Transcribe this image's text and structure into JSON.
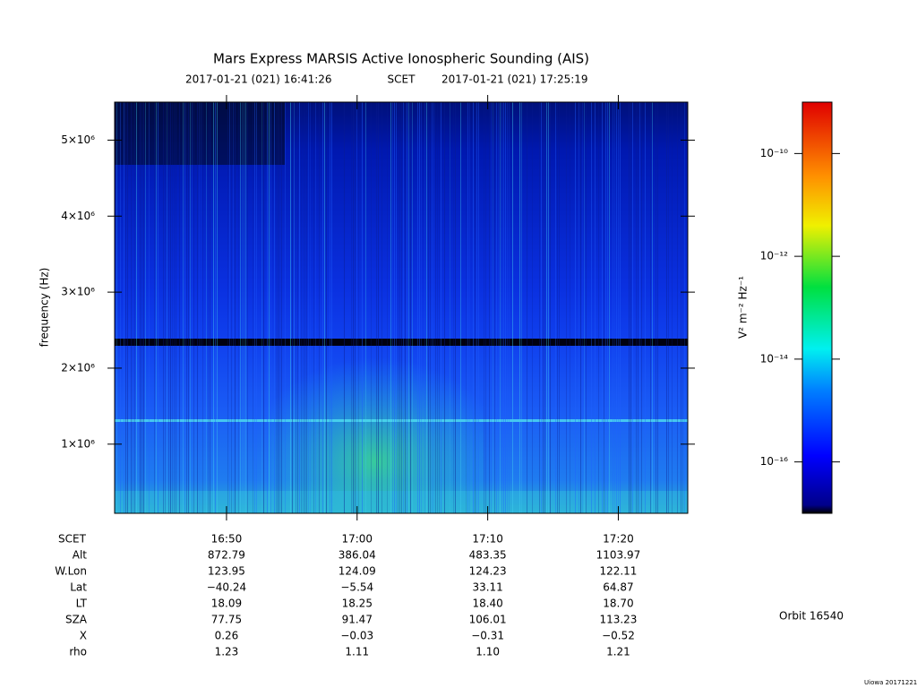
{
  "chart_data": {
    "type": "spectrogram",
    "title": "Mars Express MARSIS Active Ionospheric Sounding (AIS)",
    "start_time": "2017-01-21 (021) 16:41:26",
    "time_standard": "SCET",
    "end_time": "2017-01-21 (021) 17:25:19",
    "y_label": "frequency (Hz)",
    "ylim": [
      90000,
      5500000
    ],
    "yticks": [
      {
        "value": 1000000,
        "label": "1×10⁶"
      },
      {
        "value": 2000000,
        "label": "2×10⁶"
      },
      {
        "value": 3000000,
        "label": "3×10⁶"
      },
      {
        "value": 4000000,
        "label": "4×10⁶"
      },
      {
        "value": 5000000,
        "label": "5×10⁶"
      }
    ],
    "x_label": "SCET",
    "xticks": [
      "16:50",
      "17:00",
      "17:10",
      "17:20"
    ],
    "colorbar": {
      "label": "V² m⁻² Hz⁻¹",
      "log": true,
      "lim": [
        1e-17,
        1e-09
      ],
      "ticks": [
        {
          "value": 1e-16,
          "label": "10⁻¹⁶"
        },
        {
          "value": 1e-14,
          "label": "10⁻¹⁴"
        },
        {
          "value": 1e-12,
          "label": "10⁻¹²"
        },
        {
          "value": 1e-10,
          "label": "10⁻¹⁰"
        }
      ]
    },
    "ephemeris": [
      {
        "label": "Alt",
        "values": [
          "872.79",
          "386.04",
          "483.35",
          "1103.97"
        ]
      },
      {
        "label": "W.Lon",
        "values": [
          "123.95",
          "124.09",
          "124.23",
          "122.11"
        ]
      },
      {
        "label": "Lat",
        "values": [
          "−40.24",
          "−5.54",
          "33.11",
          "64.87"
        ]
      },
      {
        "label": "LT",
        "values": [
          "18.09",
          "18.25",
          "18.40",
          "18.70"
        ]
      },
      {
        "label": "SZA",
        "values": [
          "77.75",
          "91.47",
          "106.01",
          "113.23"
        ]
      },
      {
        "label": "X",
        "values": [
          "0.26",
          "−0.03",
          "−0.31",
          "−0.52"
        ]
      },
      {
        "label": "rho",
        "values": [
          "1.23",
          "1.11",
          "1.10",
          "1.21"
        ]
      }
    ],
    "orbit": "Orbit 16540",
    "credit": "Uiowa 20171221"
  }
}
